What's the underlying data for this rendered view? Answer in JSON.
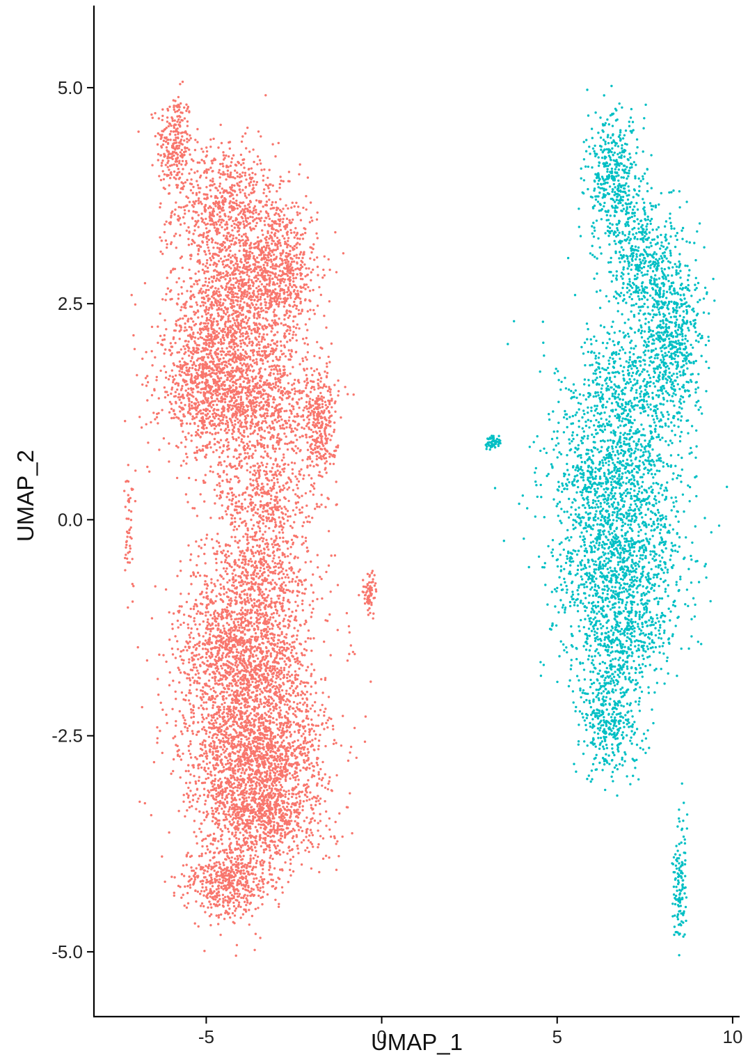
{
  "chart_data": {
    "type": "scatter",
    "title": "",
    "xlabel": "UMAP_1",
    "ylabel": "UMAP_2",
    "xlim": [
      -8.2,
      10.2
    ],
    "ylim": [
      -5.75,
      5.95
    ],
    "xticks": [
      -5,
      0,
      5,
      10
    ],
    "xtick_labels": [
      "-5",
      "0",
      "5",
      "10"
    ],
    "yticks": [
      5.0,
      2.5,
      0.0,
      -2.5,
      -5.0
    ],
    "ytick_labels": [
      "5.0",
      "2.5",
      "0.0",
      "-2.5",
      "-5.0"
    ],
    "grid": false,
    "legend": "none",
    "series": [
      {
        "color": "#F8766D",
        "clusters": [
          {
            "cx": -5.9,
            "cy": 4.35,
            "sx": 0.3,
            "sy": 0.35,
            "n": 250
          },
          {
            "cx": -4.5,
            "cy": 3.6,
            "sx": 0.85,
            "sy": 0.45,
            "n": 700
          },
          {
            "cx": -3.0,
            "cy": 2.9,
            "sx": 0.7,
            "sy": 0.5,
            "n": 800
          },
          {
            "cx": -4.4,
            "cy": 2.4,
            "sx": 1.0,
            "sy": 0.5,
            "n": 900
          },
          {
            "cx": -4.9,
            "cy": 1.5,
            "sx": 0.85,
            "sy": 0.45,
            "n": 950
          },
          {
            "cx": -3.3,
            "cy": 1.3,
            "sx": 0.9,
            "sy": 0.5,
            "n": 800
          },
          {
            "cx": -1.75,
            "cy": 1.1,
            "sx": 0.28,
            "sy": 0.4,
            "n": 300
          },
          {
            "cx": -3.4,
            "cy": 0.2,
            "sx": 0.8,
            "sy": 0.35,
            "n": 400
          },
          {
            "cx": -3.6,
            "cy": -0.6,
            "sx": 0.9,
            "sy": 0.3,
            "n": 500
          },
          {
            "cx": -7.2,
            "cy": -0.1,
            "sx": 0.1,
            "sy": 0.45,
            "n": 50
          },
          {
            "cx": -0.35,
            "cy": -0.85,
            "sx": 0.12,
            "sy": 0.15,
            "n": 70
          },
          {
            "cx": -3.9,
            "cy": -1.5,
            "sx": 1.1,
            "sy": 0.45,
            "n": 1400
          },
          {
            "cx": -3.6,
            "cy": -2.6,
            "sx": 1.2,
            "sy": 0.5,
            "n": 1700
          },
          {
            "cx": -3.4,
            "cy": -3.4,
            "sx": 1.0,
            "sy": 0.4,
            "n": 1000
          },
          {
            "cx": -4.4,
            "cy": -4.2,
            "sx": 0.7,
            "sy": 0.25,
            "n": 500
          }
        ]
      },
      {
        "color": "#00BFC4",
        "clusters": [
          {
            "cx": 6.6,
            "cy": 4.0,
            "sx": 0.45,
            "sy": 0.4,
            "n": 400
          },
          {
            "cx": 7.4,
            "cy": 3.0,
            "sx": 0.7,
            "sy": 0.45,
            "n": 500
          },
          {
            "cx": 8.3,
            "cy": 2.2,
            "sx": 0.5,
            "sy": 0.5,
            "n": 500
          },
          {
            "cx": 7.0,
            "cy": 1.5,
            "sx": 1.1,
            "sy": 0.45,
            "n": 600
          },
          {
            "cx": 6.7,
            "cy": 0.5,
            "sx": 1.1,
            "sy": 0.45,
            "n": 800
          },
          {
            "cx": 3.15,
            "cy": 0.9,
            "sx": 0.15,
            "sy": 0.06,
            "n": 50
          },
          {
            "cx": 6.8,
            "cy": -0.4,
            "sx": 1.1,
            "sy": 0.45,
            "n": 900
          },
          {
            "cx": 6.7,
            "cy": -1.3,
            "sx": 0.95,
            "sy": 0.4,
            "n": 600
          },
          {
            "cx": 6.5,
            "cy": -2.3,
            "sx": 0.55,
            "sy": 0.4,
            "n": 400
          },
          {
            "cx": 8.5,
            "cy": -4.2,
            "sx": 0.12,
            "sy": 0.45,
            "n": 130
          }
        ]
      }
    ]
  }
}
